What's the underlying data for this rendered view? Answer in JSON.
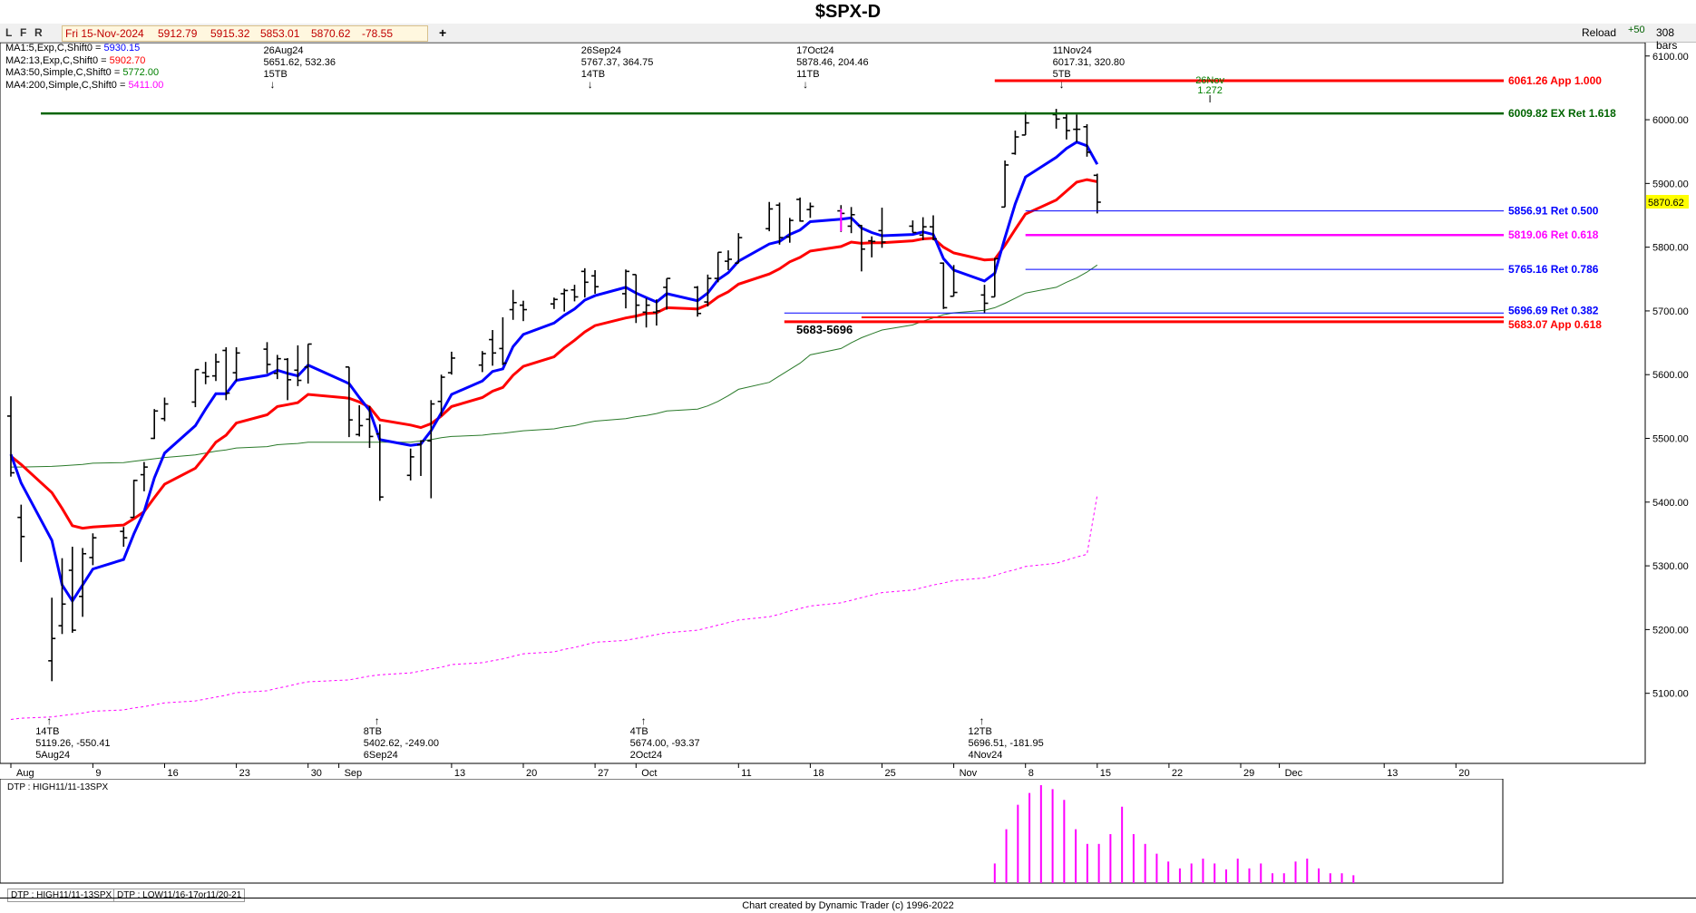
{
  "title": "$SPX-D",
  "controls": {
    "buttons": [
      "L",
      "F",
      "R"
    ],
    "quote": {
      "date": "Fri 15-Nov-2024",
      "open": "5912.79",
      "high": "5915.32",
      "low": "5853.01",
      "close": "5870.62",
      "change": "-78.55"
    },
    "add": "+",
    "reload": "Reload",
    "plus50": "+50",
    "bars": "308 bars"
  },
  "ma_legend": [
    {
      "label": "MA1:5,Exp,C,Shift0 = ",
      "value": "5930.15",
      "color": "#0000ff"
    },
    {
      "label": "MA2:13,Exp,C,Shift0 = ",
      "value": "5902.70",
      "color": "#ff0000"
    },
    {
      "label": "MA3:50,Simple,C,Shift0 = ",
      "value": "5772.00",
      "color": "#008000"
    },
    {
      "label": "MA4:200,Simple,C,Shift0 = ",
      "value": "5411.00",
      "color": "#ff00ff"
    }
  ],
  "colors": {
    "ma5": "#0000ff",
    "ma13": "#ff0000",
    "ma50": "#2a7a2a",
    "ma200": "#ff00ff",
    "ext_line": "#006400",
    "app_line": "#ff0000",
    "ret500": "#0000ff",
    "ret618": "#ff00ff",
    "ret786": "#0000ff",
    "dtp": "#ff00ff",
    "price_tag": "#ffff00"
  },
  "chart_data": {
    "type": "ohlc",
    "symbol": "$SPX-D",
    "ylim": [
      5000,
      6100
    ],
    "y_ticks": [
      "6100.00",
      "6000.00",
      "5900.00",
      "5800.00",
      "5700.00",
      "5600.00",
      "5500.00",
      "5400.00",
      "5300.00",
      "5200.00",
      "5100.00"
    ],
    "last_price": "5870.62",
    "x_tick_labels": [
      "Aug",
      "9",
      "16",
      "23",
      "30",
      "Sep",
      "13",
      "20",
      "27",
      "Oct",
      "11",
      "18",
      "25",
      "Nov",
      "8",
      "15",
      "22",
      "29",
      "Dec",
      "13",
      "20"
    ],
    "bars": [
      {
        "d": "2024-08-01",
        "o": 5535,
        "h": 5566,
        "l": 5440,
        "c": 5446
      },
      {
        "d": "2024-08-02",
        "o": 5376,
        "h": 5396,
        "l": 5306,
        "c": 5346
      },
      {
        "d": "2024-08-05",
        "o": 5151,
        "h": 5250,
        "l": 5119,
        "c": 5186
      },
      {
        "d": "2024-08-06",
        "o": 5206,
        "h": 5312,
        "l": 5193,
        "c": 5240
      },
      {
        "d": "2024-08-07",
        "o": 5293,
        "h": 5330,
        "l": 5195,
        "c": 5199
      },
      {
        "d": "2024-08-08",
        "o": 5252,
        "h": 5328,
        "l": 5220,
        "c": 5319
      },
      {
        "d": "2024-08-09",
        "o": 5313,
        "h": 5351,
        "l": 5301,
        "c": 5344
      },
      {
        "d": "2024-08-12",
        "o": 5354,
        "h": 5361,
        "l": 5330,
        "c": 5344
      },
      {
        "d": "2024-08-13",
        "o": 5376,
        "h": 5435,
        "l": 5376,
        "c": 5434
      },
      {
        "d": "2024-08-14",
        "o": 5443,
        "h": 5463,
        "l": 5417,
        "c": 5455
      },
      {
        "d": "2024-08-15",
        "o": 5500,
        "h": 5546,
        "l": 5499,
        "c": 5543
      },
      {
        "d": "2024-08-16",
        "o": 5531,
        "h": 5564,
        "l": 5527,
        "c": 5554
      },
      {
        "d": "2024-08-19",
        "o": 5557,
        "h": 5608,
        "l": 5549,
        "c": 5608
      },
      {
        "d": "2024-08-20",
        "o": 5603,
        "h": 5620,
        "l": 5585,
        "c": 5597
      },
      {
        "d": "2024-08-21",
        "o": 5598,
        "h": 5633,
        "l": 5590,
        "c": 5620
      },
      {
        "d": "2024-08-22",
        "o": 5638,
        "h": 5643,
        "l": 5560,
        "c": 5571
      },
      {
        "d": "2024-08-23",
        "o": 5603,
        "h": 5643,
        "l": 5590,
        "c": 5634
      },
      {
        "d": "2024-08-26",
        "o": 5640,
        "h": 5651,
        "l": 5602,
        "c": 5616
      },
      {
        "d": "2024-08-27",
        "o": 5602,
        "h": 5631,
        "l": 5593,
        "c": 5625
      },
      {
        "d": "2024-08-28",
        "o": 5624,
        "h": 5626,
        "l": 5560,
        "c": 5592
      },
      {
        "d": "2024-08-29",
        "o": 5607,
        "h": 5646,
        "l": 5582,
        "c": 5591
      },
      {
        "d": "2024-08-30",
        "o": 5612,
        "h": 5648,
        "l": 5586,
        "c": 5648
      },
      {
        "d": "2024-09-03",
        "o": 5612,
        "h": 5612,
        "l": 5502,
        "c": 5529
      },
      {
        "d": "2024-09-04",
        "o": 5506,
        "h": 5552,
        "l": 5503,
        "c": 5520
      },
      {
        "d": "2024-09-05",
        "o": 5530,
        "h": 5551,
        "l": 5485,
        "c": 5503
      },
      {
        "d": "2024-09-06",
        "o": 5507,
        "h": 5522,
        "l": 5402,
        "c": 5408
      },
      {
        "d": "2024-09-09",
        "o": 5442,
        "h": 5484,
        "l": 5434,
        "c": 5471
      },
      {
        "d": "2024-09-10",
        "o": 5490,
        "h": 5497,
        "l": 5441,
        "c": 5496
      },
      {
        "d": "2024-09-11",
        "o": 5496,
        "h": 5560,
        "l": 5406,
        "c": 5554
      },
      {
        "d": "2024-09-12",
        "o": 5558,
        "h": 5600,
        "l": 5535,
        "c": 5596
      },
      {
        "d": "2024-09-13",
        "o": 5603,
        "h": 5636,
        "l": 5600,
        "c": 5626
      },
      {
        "d": "2024-09-16",
        "o": 5615,
        "h": 5637,
        "l": 5604,
        "c": 5633
      },
      {
        "d": "2024-09-17",
        "o": 5655,
        "h": 5670,
        "l": 5614,
        "c": 5634
      },
      {
        "d": "2024-09-18",
        "o": 5641,
        "h": 5690,
        "l": 5615,
        "c": 5618
      },
      {
        "d": "2024-09-19",
        "o": 5702,
        "h": 5733,
        "l": 5686,
        "c": 5713
      },
      {
        "d": "2024-09-20",
        "o": 5709,
        "h": 5716,
        "l": 5684,
        "c": 5702
      },
      {
        "d": "2024-09-23",
        "o": 5711,
        "h": 5721,
        "l": 5703,
        "c": 5718
      },
      {
        "d": "2024-09-24",
        "o": 5727,
        "h": 5735,
        "l": 5699,
        "c": 5732
      },
      {
        "d": "2024-09-25",
        "o": 5733,
        "h": 5741,
        "l": 5715,
        "c": 5722
      },
      {
        "d": "2024-09-26",
        "o": 5762,
        "h": 5767,
        "l": 5721,
        "c": 5745
      },
      {
        "d": "2024-09-27",
        "o": 5755,
        "h": 5764,
        "l": 5727,
        "c": 5738
      },
      {
        "d": "2024-09-30",
        "o": 5727,
        "h": 5765,
        "l": 5704,
        "c": 5762
      },
      {
        "d": "2024-10-01",
        "o": 5757,
        "h": 5757,
        "l": 5681,
        "c": 5709
      },
      {
        "d": "2024-10-02",
        "o": 5698,
        "h": 5720,
        "l": 5674,
        "c": 5709
      },
      {
        "d": "2024-10-03",
        "o": 5698,
        "h": 5718,
        "l": 5677,
        "c": 5700
      },
      {
        "d": "2024-10-04",
        "o": 5737,
        "h": 5751,
        "l": 5702,
        "c": 5751
      },
      {
        "d": "2024-10-07",
        "o": 5737,
        "h": 5739,
        "l": 5691,
        "c": 5696
      },
      {
        "d": "2024-10-08",
        "o": 5714,
        "h": 5757,
        "l": 5707,
        "c": 5751
      },
      {
        "d": "2024-10-09",
        "o": 5751,
        "h": 5792,
        "l": 5745,
        "c": 5792
      },
      {
        "d": "2024-10-10",
        "o": 5778,
        "h": 5795,
        "l": 5764,
        "c": 5781
      },
      {
        "d": "2024-10-11",
        "o": 5775,
        "h": 5822,
        "l": 5775,
        "c": 5815
      },
      {
        "d": "2024-10-14",
        "o": 5829,
        "h": 5871,
        "l": 5825,
        "c": 5860
      },
      {
        "d": "2024-10-15",
        "o": 5866,
        "h": 5870,
        "l": 5804,
        "c": 5815
      },
      {
        "d": "2024-10-16",
        "o": 5816,
        "h": 5846,
        "l": 5807,
        "c": 5842
      },
      {
        "d": "2024-10-17",
        "o": 5875,
        "h": 5878,
        "l": 5840,
        "c": 5841
      },
      {
        "d": "2024-10-18",
        "o": 5859,
        "h": 5870,
        "l": 5846,
        "c": 5864
      },
      {
        "d": "2024-10-21",
        "o": 5857,
        "h": 5866,
        "l": 5824,
        "c": 5853
      },
      {
        "d": "2024-10-22",
        "o": 5833,
        "h": 5863,
        "l": 5822,
        "c": 5851
      },
      {
        "d": "2024-10-23",
        "o": 5834,
        "h": 5835,
        "l": 5762,
        "c": 5797
      },
      {
        "d": "2024-10-24",
        "o": 5810,
        "h": 5817,
        "l": 5784,
        "c": 5809
      },
      {
        "d": "2024-10-25",
        "o": 5826,
        "h": 5862,
        "l": 5799,
        "c": 5808
      },
      {
        "d": "2024-10-28",
        "o": 5833,
        "h": 5842,
        "l": 5823,
        "c": 5823
      },
      {
        "d": "2024-10-29",
        "o": 5819,
        "h": 5847,
        "l": 5811,
        "c": 5832
      },
      {
        "d": "2024-10-30",
        "o": 5832,
        "h": 5850,
        "l": 5811,
        "c": 5813
      },
      {
        "d": "2024-10-31",
        "o": 5775,
        "h": 5776,
        "l": 5703,
        "c": 5705
      },
      {
        "d": "2024-11-01",
        "o": 5723,
        "h": 5772,
        "l": 5723,
        "c": 5729
      },
      {
        "d": "2024-11-04",
        "o": 5725,
        "h": 5741,
        "l": 5696,
        "c": 5712
      },
      {
        "d": "2024-11-05",
        "o": 5722,
        "h": 5783,
        "l": 5722,
        "c": 5782
      },
      {
        "d": "2024-11-06",
        "o": 5863,
        "h": 5936,
        "l": 5863,
        "c": 5929
      },
      {
        "d": "2024-11-07",
        "o": 5947,
        "h": 5983,
        "l": 5945,
        "c": 5973
      },
      {
        "d": "2024-11-08",
        "o": 5976,
        "h": 6012,
        "l": 5976,
        "c": 5995
      },
      {
        "d": "2024-11-11",
        "o": 6008,
        "h": 6017,
        "l": 5986,
        "c": 6001
      },
      {
        "d": "2024-11-12",
        "o": 6003,
        "h": 6010,
        "l": 5969,
        "c": 5983
      },
      {
        "d": "2024-11-13",
        "o": 5985,
        "h": 6008,
        "l": 5965,
        "c": 5985
      },
      {
        "d": "2024-11-14",
        "o": 5989,
        "h": 5993,
        "l": 5942,
        "c": 5949
      },
      {
        "d": "2024-11-15",
        "o": 5912.79,
        "h": 5915.32,
        "l": 5853.01,
        "c": 5870.62
      }
    ],
    "moving_averages": {
      "ma5": [
        5475,
        5430,
        5340,
        5270,
        5245,
        5270,
        5295,
        5310,
        5350,
        5385,
        5438,
        5477,
        5520,
        5546,
        5570,
        5570,
        5591,
        5599,
        5607,
        5602,
        5598,
        5615,
        5586,
        5564,
        5544,
        5498,
        5489,
        5491,
        5512,
        5540,
        5569,
        5590,
        5605,
        5609,
        5644,
        5663,
        5681,
        5693,
        5703,
        5717,
        5724,
        5737,
        5728,
        5721,
        5714,
        5727,
        5716,
        5728,
        5749,
        5760,
        5778,
        5805,
        5809,
        5820,
        5827,
        5840,
        5844,
        5846,
        5830,
        5823,
        5818,
        5820,
        5824,
        5820,
        5782,
        5764,
        5747,
        5759,
        5815,
        5868,
        5910,
        5941,
        5955,
        5965,
        5959,
        5930.15
      ],
      "ma13": [
        5472,
        5459,
        5415,
        5390,
        5363,
        5359,
        5361,
        5364,
        5374,
        5385,
        5407,
        5428,
        5453,
        5473,
        5494,
        5505,
        5524,
        5537,
        5550,
        5553,
        5556,
        5569,
        5563,
        5557,
        5549,
        5529,
        5521,
        5517,
        5523,
        5535,
        5550,
        5564,
        5574,
        5580,
        5599,
        5613,
        5628,
        5642,
        5654,
        5667,
        5677,
        5689,
        5692,
        5696,
        5697,
        5705,
        5703,
        5710,
        5722,
        5730,
        5742,
        5758,
        5766,
        5777,
        5784,
        5794,
        5801,
        5808,
        5806,
        5807,
        5807,
        5810,
        5813,
        5814,
        5800,
        5791,
        5780,
        5781,
        5803,
        5828,
        5852,
        5874,
        5888,
        5902,
        5906,
        5902.7
      ],
      "ma50": [
        5455,
        5455,
        5456,
        5457,
        5458,
        5459,
        5461,
        5462,
        5464,
        5466,
        5468,
        5470,
        5474,
        5477,
        5480,
        5482,
        5485,
        5487,
        5490,
        5491,
        5492,
        5494,
        5494,
        5494,
        5494,
        5494,
        5494,
        5496,
        5498,
        5501,
        5503,
        5505,
        5507,
        5508,
        5510,
        5512,
        5515,
        5518,
        5520,
        5524,
        5527,
        5531,
        5534,
        5536,
        5539,
        5543,
        5546,
        5551,
        5558,
        5567,
        5577,
        5588,
        5598,
        5608,
        5618,
        5631,
        5641,
        5650,
        5658,
        5664,
        5670,
        5678,
        5684,
        5689,
        5694,
        5697,
        5701,
        5705,
        5712,
        5720,
        5728,
        5737,
        5745,
        5752,
        5761,
        5772.0
      ],
      "ma200": [
        5059,
        5061,
        5063,
        5065,
        5067,
        5069,
        5072,
        5074,
        5077,
        5079,
        5082,
        5085,
        5088,
        5091,
        5094,
        5097,
        5101,
        5104,
        5108,
        5111,
        5115,
        5118,
        5121,
        5124,
        5127,
        5129,
        5132,
        5135,
        5138,
        5141,
        5145,
        5148,
        5151,
        5154,
        5158,
        5162,
        5165,
        5169,
        5172,
        5176,
        5180,
        5183,
        5186,
        5189,
        5192,
        5195,
        5199,
        5203,
        5207,
        5211,
        5215,
        5220,
        5224,
        5229,
        5233,
        5237,
        5242,
        5246,
        5250,
        5254,
        5258,
        5262,
        5266,
        5270,
        5273,
        5277,
        5281,
        5285,
        5290,
        5294,
        5299,
        5304,
        5309,
        5314,
        5318,
        5411.0
      ]
    },
    "levels": [
      {
        "price": 6061.26,
        "label": "6061.26 App 1.000",
        "kind": "app"
      },
      {
        "price": 6009.82,
        "label": "6009.82 EX Ret 1.618",
        "kind": "ext"
      },
      {
        "price": 5856.91,
        "label": "5856.91 Ret 0.500",
        "kind": "ret500"
      },
      {
        "price": 5819.06,
        "label": "5819.06 Ret 0.618",
        "kind": "ret618"
      },
      {
        "price": 5765.16,
        "label": "5765.16 Ret 0.786",
        "kind": "ret786"
      },
      {
        "price": 5696.69,
        "label": "5696.69 Ret 0.382",
        "kind": "ret382"
      },
      {
        "price": 5683.07,
        "label": "5683.07 App 0.618",
        "kind": "app618"
      }
    ],
    "zone_label": "5683-5696",
    "pivots_high": [
      {
        "date_label": "26Aug24",
        "value_label": "5651.62, 532.36",
        "tb": "15TB"
      },
      {
        "date_label": "26Sep24",
        "value_label": "5767.37, 364.75",
        "tb": "14TB"
      },
      {
        "date_label": "17Oct24",
        "value_label": "5878.46, 204.46",
        "tb": "11TB"
      },
      {
        "date_label": "11Nov24",
        "value_label": "6017.31, 320.80",
        "tb": "5TB"
      }
    ],
    "pivots_low": [
      {
        "tb": "14TB",
        "value_label": "5119.26, -550.41",
        "date_label": "5Aug24"
      },
      {
        "tb": "8TB",
        "value_label": "5402.62, -249.00",
        "date_label": "6Sep24"
      },
      {
        "tb": "4TB",
        "value_label": "5674.00, -93.37",
        "date_label": "2Oct24"
      },
      {
        "tb": "12TB",
        "value_label": "5696.51, -181.95",
        "date_label": "4Nov24"
      }
    ],
    "time_target": {
      "date_label": "26Nov",
      "ratio_label": "1.272"
    },
    "dtp_panel": {
      "label": "DTP : HIGH11/11-13SPX",
      "tabs": [
        "DTP : HIGH11/11-13SPX",
        "DTP : LOW11/16-17or11/20-21"
      ],
      "values": [
        0.2,
        0.55,
        0.8,
        0.92,
        1.0,
        0.96,
        0.85,
        0.55,
        0.4,
        0.4,
        0.5,
        0.78,
        0.5,
        0.4,
        0.3,
        0.22,
        0.15,
        0.2,
        0.25,
        0.2,
        0.14,
        0.25,
        0.15,
        0.2,
        0.1,
        0.1,
        0.22,
        0.25,
        0.15,
        0.1,
        0.1,
        0.08
      ]
    }
  },
  "credit": "Chart created by Dynamic Trader  (c) 1996-2022"
}
